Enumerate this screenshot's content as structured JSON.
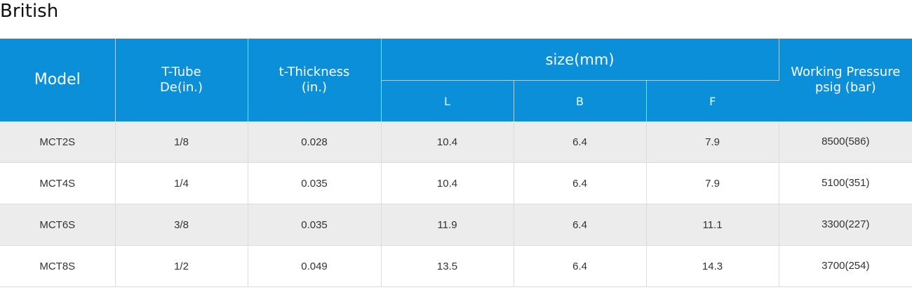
{
  "heading": "British",
  "table": {
    "headers": {
      "model": "Model",
      "tube_line1": "T-Tube",
      "tube_line2": "De(in.)",
      "thickness_line1": "t-Thickness",
      "thickness_line2": "(in.)",
      "size": "size(mm)",
      "pressure_line1": "Working Pressure",
      "pressure_line2": "psig (bar)",
      "sub": [
        "L",
        "B",
        "F"
      ]
    },
    "rows": [
      [
        "MCT2S",
        "1/8",
        "0.028",
        "10.4",
        "6.4",
        "7.9",
        "8500(586)"
      ],
      [
        "MCT4S",
        "1/4",
        "0.035",
        "10.4",
        "6.4",
        "7.9",
        "5100(351)"
      ],
      [
        "MCT6S",
        "3/8",
        "0.035",
        "11.9",
        "6.4",
        "11.1",
        "3300(227)"
      ],
      [
        "MCT8S",
        "1/2",
        "0.049",
        "13.5",
        "6.4",
        "14.3",
        "3700(254)"
      ]
    ]
  },
  "colors": {
    "header_bg": "#0a8fd8",
    "header_text": "#ffffff",
    "row_alt_bg": "#ececec"
  }
}
